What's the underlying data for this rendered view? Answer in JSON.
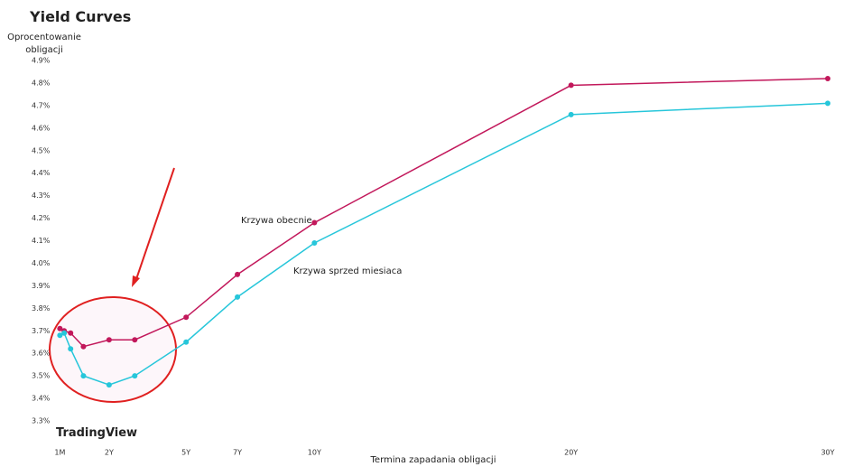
{
  "chart_data": {
    "type": "line",
    "title": "Yield Curves",
    "y_label": "Oprocentowanie obligacji",
    "x_label": "Termina zapadania obligacji",
    "watermark": "TradingView",
    "x": [
      0.0833,
      0.25,
      0.5,
      1,
      2,
      3,
      5,
      7,
      10,
      20,
      30
    ],
    "series": [
      {
        "name": "Krzywa obecnie",
        "color": "#c2185b",
        "values": [
          3.71,
          3.7,
          3.69,
          3.63,
          3.66,
          3.66,
          3.76,
          3.95,
          4.18,
          4.79,
          4.82
        ]
      },
      {
        "name": "Krzywa sprzed miesiaca",
        "color": "#26c6da",
        "values": [
          3.68,
          3.69,
          3.62,
          3.5,
          3.46,
          3.5,
          3.65,
          3.85,
          4.09,
          4.66,
          4.71
        ]
      }
    ],
    "xlim": [
      0,
      30
    ],
    "xticks": [
      {
        "value": 0.0833,
        "label": "1M"
      },
      {
        "value": 2,
        "label": "2Y"
      },
      {
        "value": 5,
        "label": "5Y"
      },
      {
        "value": 7,
        "label": "7Y"
      },
      {
        "value": 10,
        "label": "10Y"
      },
      {
        "value": 20,
        "label": "20Y"
      },
      {
        "value": 30,
        "label": "30Y"
      }
    ],
    "ylim": [
      3.3,
      4.9
    ],
    "yticks": [
      {
        "value": 3.3,
        "label": "3.3%"
      },
      {
        "value": 3.4,
        "label": "3.4%"
      },
      {
        "value": 3.5,
        "label": "3.5%"
      },
      {
        "value": 3.6,
        "label": "3.6%"
      },
      {
        "value": 3.7,
        "label": "3.7%"
      },
      {
        "value": 3.8,
        "label": "3.8%"
      },
      {
        "value": 3.9,
        "label": "3.9%"
      },
      {
        "value": 4.0,
        "label": "4.0%"
      },
      {
        "value": 4.1,
        "label": "4.1%"
      },
      {
        "value": 4.2,
        "label": "4.2%"
      },
      {
        "value": 4.3,
        "label": "4.3%"
      },
      {
        "value": 4.4,
        "label": "4.4%"
      },
      {
        "value": 4.5,
        "label": "4.5%"
      },
      {
        "value": 4.6,
        "label": "4.6%"
      },
      {
        "value": 4.7,
        "label": "4.7%"
      },
      {
        "value": 4.8,
        "label": "4.8%"
      },
      {
        "value": 4.9,
        "label": "4.9%"
      }
    ],
    "grid": false
  }
}
